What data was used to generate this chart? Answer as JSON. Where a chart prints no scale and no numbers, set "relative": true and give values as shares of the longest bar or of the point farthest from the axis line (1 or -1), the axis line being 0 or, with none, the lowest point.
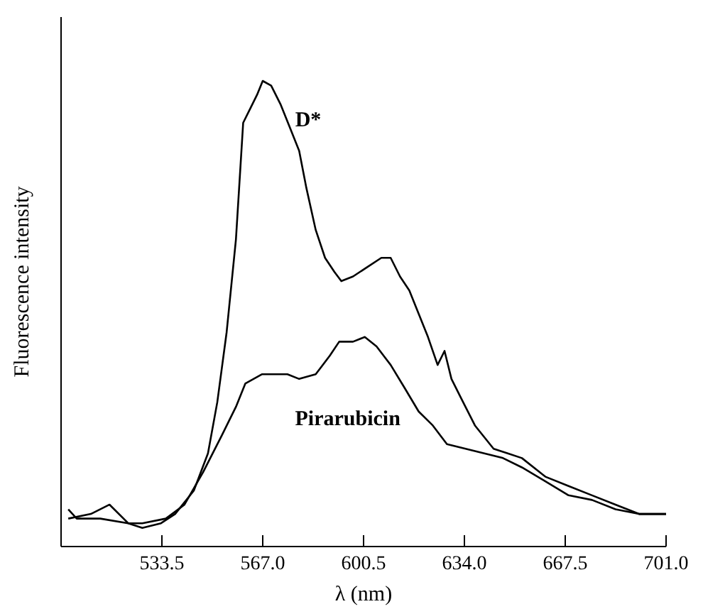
{
  "chart_data": {
    "type": "line",
    "xlabel": "λ (nm)",
    "ylabel": "Fluorescence intensity",
    "relative": true,
    "xlim": [
      500,
      701
    ],
    "xticks": [
      {
        "value": 533.5,
        "label": "533.5"
      },
      {
        "value": 567,
        "label": "567.0"
      },
      {
        "value": 600.5,
        "label": "600.5"
      },
      {
        "value": 634,
        "label": "634.0"
      },
      {
        "value": 667.5,
        "label": "667.5"
      },
      {
        "value": 701,
        "label": "701.0"
      }
    ],
    "grid": false,
    "marker": "none",
    "line_style": "solid",
    "series": [
      {
        "name": "D*",
        "color": "#000000",
        "x": [
          502.4,
          505.2,
          513.0,
          522.3,
          527.0,
          533.2,
          537.9,
          544.1,
          548.8,
          551.9,
          555.0,
          558.1,
          560.5,
          562.8,
          565.1,
          567.0,
          569.8,
          572.9,
          576.0,
          579.1,
          581.5,
          584.6,
          587.7,
          590.8,
          593.1,
          597.0,
          601.7,
          606.4,
          609.5,
          612.6,
          615.7,
          618.8,
          621.9,
          625.1,
          627.4,
          629.7,
          632.8,
          637.5,
          643.7,
          648.4,
          653.1,
          660.9,
          668.6,
          676.4,
          684.2,
          692.0,
          701.0
        ],
        "values": [
          0.08,
          0.06,
          0.06,
          0.05,
          0.04,
          0.05,
          0.07,
          0.12,
          0.2,
          0.31,
          0.46,
          0.66,
          0.91,
          0.94,
          0.97,
          1.0,
          0.99,
          0.95,
          0.9,
          0.85,
          0.77,
          0.68,
          0.62,
          0.59,
          0.57,
          0.58,
          0.6,
          0.62,
          0.62,
          0.58,
          0.55,
          0.5,
          0.45,
          0.39,
          0.42,
          0.36,
          0.32,
          0.26,
          0.21,
          0.2,
          0.19,
          0.15,
          0.13,
          0.11,
          0.09,
          0.07,
          0.07
        ]
      },
      {
        "name": "Pirarubicin",
        "color": "#000000",
        "x": [
          502.4,
          509.9,
          516.1,
          522.3,
          527.0,
          534.8,
          541.0,
          547.2,
          553.5,
          558.1,
          561.2,
          566.7,
          572.1,
          575.2,
          579.1,
          584.6,
          589.3,
          592.4,
          597.0,
          600.9,
          604.8,
          609.5,
          614.2,
          618.8,
          623.5,
          628.2,
          634.4,
          640.6,
          646.8,
          653.1,
          660.9,
          668.6,
          676.4,
          684.2,
          692.0,
          701.0
        ],
        "values": [
          0.06,
          0.07,
          0.09,
          0.05,
          0.05,
          0.06,
          0.09,
          0.16,
          0.24,
          0.3,
          0.35,
          0.37,
          0.37,
          0.37,
          0.36,
          0.37,
          0.41,
          0.44,
          0.44,
          0.45,
          0.43,
          0.39,
          0.34,
          0.29,
          0.26,
          0.22,
          0.21,
          0.2,
          0.19,
          0.17,
          0.14,
          0.11,
          0.1,
          0.08,
          0.07,
          0.07
        ]
      }
    ]
  }
}
